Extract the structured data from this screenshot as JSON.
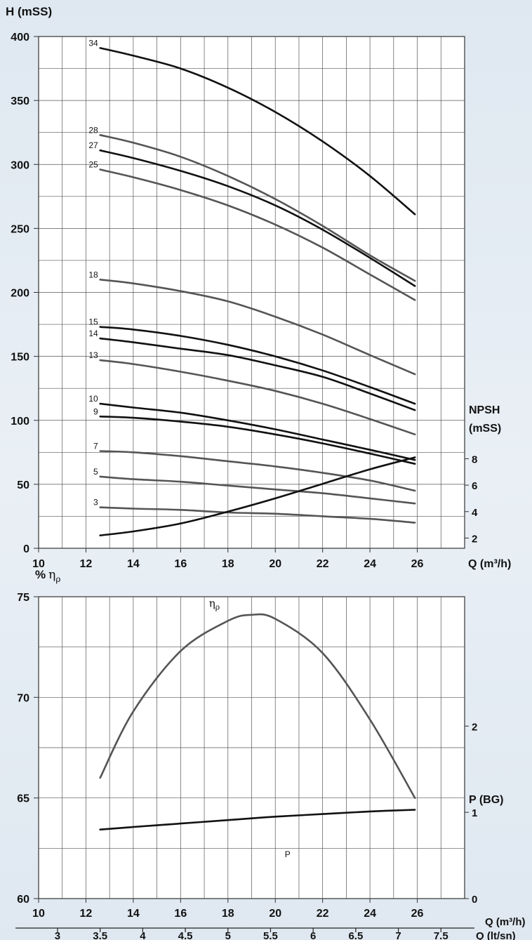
{
  "chart_data": [
    {
      "type": "line",
      "ylabel": "H (mSS)",
      "xlabel": "Q (m³/h)",
      "xlim": [
        10,
        28
      ],
      "ylim": [
        0,
        400
      ],
      "x_ticks": [
        10,
        12,
        14,
        16,
        18,
        20,
        22,
        24,
        26
      ],
      "y_ticks": [
        0,
        50,
        100,
        150,
        200,
        250,
        300,
        350,
        400
      ],
      "grid": true,
      "secondary_axis": {
        "label_line1": "NPSH",
        "label_line2": "(mSS)",
        "ticks": [
          2,
          4,
          6,
          8
        ],
        "range": [
          2,
          8
        ]
      },
      "x": [
        12.6,
        14,
        16,
        18,
        20,
        22,
        24,
        25.9
      ],
      "series": [
        {
          "name": "34",
          "color": "#111111",
          "values": [
            391,
            385,
            375,
            360,
            341,
            318,
            291,
            261
          ]
        },
        {
          "name": "28",
          "color": "#555555",
          "values": [
            323,
            317,
            306,
            291,
            273,
            252,
            229,
            209
          ]
        },
        {
          "name": "27",
          "color": "#111111",
          "values": [
            311,
            305,
            295,
            283,
            268,
            249,
            227,
            205
          ]
        },
        {
          "name": "25",
          "color": "#555555",
          "values": [
            296,
            290,
            280,
            268,
            253,
            235,
            214,
            194
          ]
        },
        {
          "name": "18",
          "color": "#555555",
          "values": [
            210,
            207,
            201,
            193,
            181,
            167,
            151,
            136
          ]
        },
        {
          "name": "15",
          "color": "#111111",
          "values": [
            173,
            171,
            166,
            159,
            150,
            139,
            126,
            113
          ]
        },
        {
          "name": "14",
          "color": "#111111",
          "values": [
            164,
            161,
            156,
            151,
            143,
            134,
            121,
            108
          ]
        },
        {
          "name": "13",
          "color": "#555555",
          "values": [
            147,
            144,
            138,
            131,
            123,
            113,
            101,
            89
          ]
        },
        {
          "name": "10",
          "color": "#111111",
          "values": [
            113,
            110,
            106,
            100,
            93,
            85,
            77,
            69
          ]
        },
        {
          "name": "9",
          "color": "#111111",
          "values": [
            103,
            102,
            99,
            95,
            89,
            82,
            74,
            66
          ]
        },
        {
          "name": "7",
          "color": "#555555",
          "values": [
            76,
            75,
            72,
            68,
            64,
            59,
            53,
            45
          ]
        },
        {
          "name": "5",
          "color": "#555555",
          "values": [
            56,
            54,
            52,
            49,
            46,
            43,
            39,
            35
          ]
        },
        {
          "name": "3",
          "color": "#555555",
          "values": [
            32,
            31,
            30,
            28,
            27,
            25,
            23,
            20
          ]
        },
        {
          "name": "NPSH",
          "color": "#111111",
          "axis": "secondary",
          "values": [
            2.2,
            2.5,
            3.1,
            4.0,
            5.0,
            6.1,
            7.2,
            8.1
          ]
        }
      ],
      "curve_labels": [
        "34",
        "28",
        "27",
        "25",
        "18",
        "15",
        "14",
        "13",
        "10",
        "9",
        "7",
        "5",
        "3"
      ]
    },
    {
      "type": "line",
      "ylabel_prefix": "%",
      "ylabel_symbol": "η",
      "ylabel_sub": "ρ",
      "xlabel": "Q (m³/h)",
      "xlabel2": "Q (lt/sn)",
      "xlim": [
        10,
        28
      ],
      "ylim": [
        60,
        75
      ],
      "x_ticks": [
        10,
        12,
        14,
        16,
        18,
        20,
        22,
        24,
        26
      ],
      "y_ticks": [
        60,
        65,
        70,
        75
      ],
      "x2_ticks": [
        "3",
        "3.5",
        "4",
        "4.5",
        "5",
        "5.5",
        "6",
        "6.5",
        "7",
        "7.5"
      ],
      "grid": true,
      "secondary_axis": {
        "label": "P (BG)",
        "ticks": [
          0,
          1,
          2
        ],
        "range": [
          0,
          3.5
        ]
      },
      "x": [
        12.6,
        14,
        16,
        18,
        19,
        20,
        22,
        24,
        25.9
      ],
      "series": [
        {
          "name": "ηρ",
          "color": "#555555",
          "values": [
            66.0,
            69.3,
            72.3,
            73.8,
            74.1,
            73.9,
            72.2,
            68.9,
            65.0
          ]
        },
        {
          "name": "P",
          "color": "#111111",
          "axis": "secondary",
          "values": [
            0.8,
            0.83,
            0.87,
            0.91,
            0.93,
            0.95,
            0.98,
            1.01,
            1.03
          ]
        }
      ],
      "curve_label_eta": "η",
      "curve_label_eta_sub": "ρ",
      "curve_label_p": "P"
    }
  ]
}
